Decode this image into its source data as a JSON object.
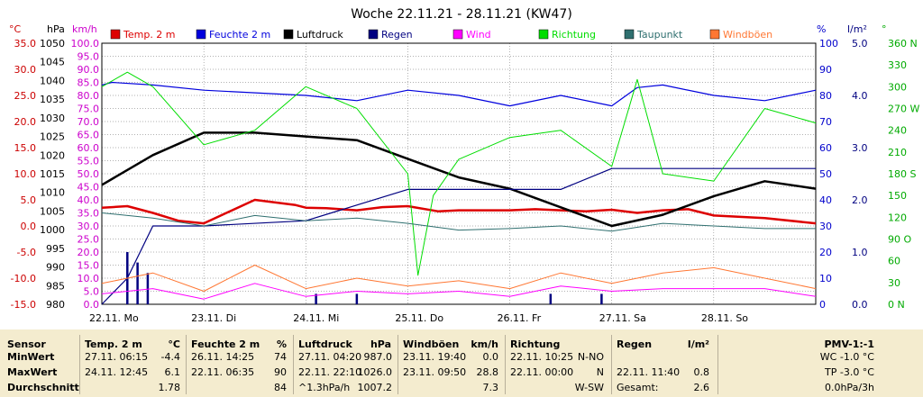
{
  "chart_data": {
    "type": "line",
    "title": "Woche 22.11.21 - 28.11.21 (KW47)",
    "x_labels": [
      "22.11. Mo",
      "23.11. Di",
      "24.11. Mi",
      "25.11. Do",
      "26.11. Fr",
      "27.11. Sa",
      "28.11. So"
    ],
    "axes": {
      "temp": {
        "unit": "°C",
        "min": -15,
        "max": 35,
        "ticks": [
          "35.0",
          "30.0",
          "25.0",
          "20.0",
          "15.0",
          "10.0",
          "5.0",
          "0.0",
          "-5.0",
          "-10.0",
          "-15.0"
        ],
        "color": "#cc0000"
      },
      "press": {
        "unit": "hPa",
        "min": 980,
        "max": 1050,
        "ticks": [
          "1050",
          "1045",
          "1040",
          "1035",
          "1030",
          "1025",
          "1020",
          "1015",
          "1010",
          "1005",
          "1000",
          "995",
          "990",
          "985",
          "980"
        ],
        "color": "#000000"
      },
      "wind": {
        "unit": "km/h",
        "min": 0,
        "max": 100,
        "ticks": [
          "100.0",
          "95.0",
          "90.0",
          "85.0",
          "80.0",
          "75.0",
          "70.0",
          "65.0",
          "60.0",
          "55.0",
          "50.0",
          "45.0",
          "40.0",
          "35.0",
          "30.0",
          "25.0",
          "20.0",
          "15.0",
          "10.0",
          "5.0",
          "0.0"
        ],
        "color": "#cc00cc"
      },
      "hum": {
        "unit": "%",
        "min": 0,
        "max": 100,
        "ticks": [
          "100",
          "90",
          "80",
          "70",
          "60",
          "50",
          "40",
          "30",
          "20",
          "10",
          "0"
        ],
        "color": "#0000cc"
      },
      "rain": {
        "unit": "l/m²",
        "min": 0,
        "max": 5,
        "ticks": [
          "5.0",
          "4.0",
          "3.0",
          "2.0",
          "1.0",
          "0.0"
        ],
        "color": "#000080"
      },
      "dir": {
        "unit": "°",
        "min": 0,
        "max": 360,
        "ticks": [
          "360 N",
          "330",
          "300",
          "270 W",
          "240",
          "210",
          "180 S",
          "150",
          "120",
          "90 O",
          "60",
          "30",
          "0 N"
        ],
        "color": "#00aa00"
      }
    },
    "legend": [
      {
        "name": "Temp. 2 m",
        "color": "#dd0000"
      },
      {
        "name": "Feuchte 2 m",
        "color": "#0000dd"
      },
      {
        "name": "Luftdruck",
        "color": "#000000"
      },
      {
        "name": "Regen",
        "color": "#000080"
      },
      {
        "name": "Wind",
        "color": "#ff00ff"
      },
      {
        "name": "Richtung",
        "color": "#00dd00"
      },
      {
        "name": "Taupunkt",
        "color": "#2f6f6f"
      },
      {
        "name": "Windböen",
        "color": "#ff7733"
      }
    ],
    "series": [
      {
        "name": "Temp. 2 m",
        "axis": "temp",
        "color": "#dd0000",
        "width": 2.5,
        "x": [
          0,
          0.1,
          0.25,
          0.5,
          0.75,
          1,
          1.5,
          1.9,
          2.0,
          2.2,
          2.5,
          2.75,
          3.0,
          3.3,
          3.5,
          4.0,
          4.25,
          4.5,
          4.75,
          5.0,
          5.25,
          5.5,
          5.75,
          6.0,
          6.5,
          7.0
        ],
        "y": [
          3.5,
          3.6,
          3.8,
          2.5,
          1.0,
          0.5,
          5.0,
          4.0,
          3.5,
          3.4,
          3.0,
          3.6,
          3.8,
          2.8,
          3.0,
          3.0,
          3.2,
          3.0,
          2.8,
          3.1,
          2.5,
          3.0,
          3.2,
          2.0,
          1.5,
          0.5
        ]
      },
      {
        "name": "Feuchte 2 m",
        "axis": "hum",
        "color": "#0000dd",
        "width": 1.2,
        "x": [
          0,
          0.1,
          0.5,
          1.0,
          2.0,
          2.5,
          3.0,
          3.5,
          4.0,
          4.5,
          5.0,
          5.25,
          5.5,
          6.0,
          6.5,
          7.0
        ],
        "y": [
          84,
          85,
          84,
          82,
          80,
          78,
          82,
          80,
          76,
          80,
          76,
          83,
          84,
          80,
          78,
          82
        ]
      },
      {
        "name": "Luftdruck",
        "axis": "press",
        "color": "#000000",
        "width": 2.5,
        "x": [
          0,
          0.5,
          1.0,
          1.5,
          2.0,
          2.5,
          3.0,
          3.5,
          4.0,
          4.5,
          5.0,
          5.5,
          6.0,
          6.5,
          7.0
        ],
        "y": [
          1012,
          1020,
          1026,
          1026,
          1025,
          1024,
          1019,
          1014,
          1011,
          1006,
          1001,
          1004,
          1009,
          1013,
          1011
        ]
      },
      {
        "name": "Regen",
        "axis": "rain",
        "color": "#000080",
        "width": 1.2,
        "x": [
          0,
          0.25,
          0.5,
          1.0,
          2.0,
          3.0,
          4.0,
          4.5,
          5.0,
          5.5,
          6.0,
          7.0
        ],
        "y": [
          0,
          0.5,
          1.5,
          1.5,
          1.6,
          2.2,
          2.2,
          2.2,
          2.6,
          2.6,
          2.6,
          2.6
        ]
      },
      {
        "name": "Wind",
        "axis": "wind",
        "color": "#ff00ff",
        "width": 1,
        "x": [
          0,
          0.5,
          1.0,
          1.5,
          2.0,
          2.5,
          3.0,
          3.5,
          4.0,
          4.5,
          5.0,
          5.5,
          6.0,
          6.5,
          7.0
        ],
        "y": [
          4,
          6,
          2,
          8,
          3,
          5,
          4,
          5,
          3,
          7,
          5,
          6,
          6,
          6,
          3
        ]
      },
      {
        "name": "Richtung",
        "axis": "dir",
        "color": "#00dd00",
        "width": 1,
        "x": [
          0,
          0.25,
          0.5,
          1.0,
          1.5,
          2.0,
          2.5,
          3.0,
          3.1,
          3.25,
          3.5,
          4.0,
          4.5,
          5.0,
          5.25,
          5.5,
          6.0,
          6.5,
          7.0
        ],
        "y": [
          300,
          320,
          300,
          220,
          240,
          300,
          270,
          180,
          40,
          150,
          200,
          230,
          240,
          190,
          310,
          180,
          170,
          270,
          250
        ]
      },
      {
        "name": "Taupunkt",
        "axis": "temp",
        "color": "#2f6f6f",
        "width": 1,
        "x": [
          0,
          0.5,
          1.0,
          1.5,
          2.0,
          2.5,
          3.0,
          3.5,
          4.0,
          4.5,
          5.0,
          5.5,
          6.0,
          6.5,
          7.0
        ],
        "y": [
          2.5,
          1.5,
          0.0,
          2.0,
          1.0,
          1.5,
          0.5,
          -0.8,
          -0.5,
          0.0,
          -1.0,
          0.5,
          0.0,
          -0.5,
          -0.5
        ]
      },
      {
        "name": "Windböen",
        "axis": "wind",
        "color": "#ff7733",
        "width": 1,
        "x": [
          0,
          0.5,
          1.0,
          1.5,
          2.0,
          2.5,
          3.0,
          3.5,
          4.0,
          4.5,
          5.0,
          5.5,
          6.0,
          6.5,
          7.0
        ],
        "y": [
          8,
          12,
          5,
          15,
          6,
          10,
          7,
          9,
          6,
          12,
          8,
          12,
          14,
          10,
          6
        ]
      }
    ],
    "grid": true
  },
  "stats": {
    "columns": [
      {
        "head": "Sensor",
        "unit": ""
      },
      {
        "head": "Temp. 2 m",
        "unit": "°C"
      },
      {
        "head": "Feuchte  2 m",
        "unit": "%"
      },
      {
        "head": "Luftdruck",
        "unit": "hPa"
      },
      {
        "head": "Windböen",
        "unit": "km/h"
      },
      {
        "head": "Richtung",
        "unit": ""
      },
      {
        "head": "Regen",
        "unit": "l/m²"
      },
      {
        "head": "PMV-1:-1",
        "unit": ""
      }
    ],
    "rows": [
      {
        "label": "MinWert",
        "temp_time": "27.11.  06:15",
        "temp_val": "-4.4",
        "hum_time": "26.11.  14:25",
        "hum_val": "74",
        "press_time": "27.11.  04:20",
        "press_val": "987.0",
        "gust_time": "23.11.  19:40",
        "gust_val": "0.0",
        "dir_time": "22.11.  10:25",
        "dir_val": "N-NO",
        "rain_time": "",
        "rain_val": "",
        "pmv": "WC -1.0 °C"
      },
      {
        "label": "MaxWert",
        "temp_time": "24.11.  12:45",
        "temp_val": "6.1",
        "hum_time": "22.11.  06:35",
        "hum_val": "90",
        "press_time": "22.11.  22:10",
        "press_val": "1026.0",
        "gust_time": "23.11.  09:50",
        "gust_val": "28.8",
        "dir_time": "22.11.  00:00",
        "dir_val": "N",
        "rain_time": "22.11.  11:40",
        "rain_val": "0.8",
        "pmv": "TP -3.0 °C"
      },
      {
        "label": "Durchschnitt",
        "temp_time": "",
        "temp_val": "1.78",
        "hum_time": "",
        "hum_val": "84",
        "press_time": "^1.3hPa/h",
        "press_val": "1007.2",
        "gust_time": "",
        "gust_val": "7.3",
        "dir_time": "",
        "dir_val": "W-SW",
        "rain_time": "Gesamt:",
        "rain_val": "2.6",
        "pmv": "0.0hPa/3h"
      }
    ]
  }
}
